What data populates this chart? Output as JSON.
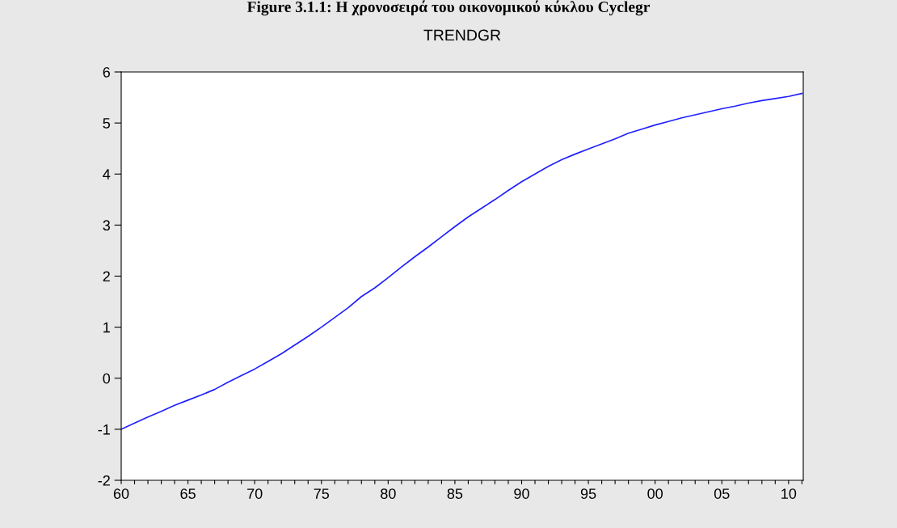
{
  "chart_data": {
    "type": "line",
    "title": "TRENDGR",
    "annotations": [
      "Figure 3.1.1: Η χρονοσειρά του οικονομικού κύκλου Cyclegr"
    ],
    "x": [
      1960,
      1961,
      1962,
      1963,
      1964,
      1965,
      1966,
      1967,
      1968,
      1969,
      1970,
      1971,
      1972,
      1973,
      1974,
      1975,
      1976,
      1977,
      1978,
      1979,
      1980,
      1981,
      1982,
      1983,
      1984,
      1985,
      1986,
      1987,
      1988,
      1989,
      1990,
      1991,
      1992,
      1993,
      1994,
      1995,
      1996,
      1997,
      1998,
      1999,
      2000,
      2001,
      2002,
      2003,
      2004,
      2005,
      2006,
      2007,
      2008,
      2009,
      2010,
      2011
    ],
    "series": [
      {
        "color": "#2020ff",
        "values": [
          -1.0,
          -0.88,
          -0.76,
          -0.65,
          -0.53,
          -0.43,
          -0.33,
          -0.22,
          -0.08,
          0.05,
          0.18,
          0.33,
          0.48,
          0.65,
          0.82,
          1.0,
          1.19,
          1.38,
          1.6,
          1.77,
          1.97,
          2.18,
          2.38,
          2.57,
          2.77,
          2.97,
          3.16,
          3.33,
          3.5,
          3.68,
          3.85,
          4.0,
          4.15,
          4.28,
          4.39,
          4.49,
          4.59,
          4.69,
          4.8,
          4.88,
          4.96,
          5.03,
          5.1,
          5.16,
          5.22,
          5.28,
          5.33,
          5.39,
          5.44,
          5.48,
          5.52,
          5.58
        ]
      }
    ],
    "xlim": [
      1960,
      2011.1
    ],
    "ylim": [
      -2,
      6
    ],
    "yticks": [
      -2,
      -1,
      0,
      1,
      2,
      3,
      4,
      5,
      6
    ],
    "xticks": [
      {
        "value": 1960,
        "label": "60"
      },
      {
        "value": 1961,
        "label": null
      },
      {
        "value": 1962,
        "label": null
      },
      {
        "value": 1963,
        "label": null
      },
      {
        "value": 1964,
        "label": null
      },
      {
        "value": 1965,
        "label": "65"
      },
      {
        "value": 1966,
        "label": null
      },
      {
        "value": 1967,
        "label": null
      },
      {
        "value": 1968,
        "label": null
      },
      {
        "value": 1969,
        "label": null
      },
      {
        "value": 1970,
        "label": "70"
      },
      {
        "value": 1971,
        "label": null
      },
      {
        "value": 1972,
        "label": null
      },
      {
        "value": 1973,
        "label": null
      },
      {
        "value": 1974,
        "label": null
      },
      {
        "value": 1975,
        "label": "75"
      },
      {
        "value": 1976,
        "label": null
      },
      {
        "value": 1977,
        "label": null
      },
      {
        "value": 1978,
        "label": null
      },
      {
        "value": 1979,
        "label": null
      },
      {
        "value": 1980,
        "label": "80"
      },
      {
        "value": 1981,
        "label": null
      },
      {
        "value": 1982,
        "label": null
      },
      {
        "value": 1983,
        "label": null
      },
      {
        "value": 1984,
        "label": null
      },
      {
        "value": 1985,
        "label": "85"
      },
      {
        "value": 1986,
        "label": null
      },
      {
        "value": 1987,
        "label": null
      },
      {
        "value": 1988,
        "label": null
      },
      {
        "value": 1989,
        "label": null
      },
      {
        "value": 1990,
        "label": "90"
      },
      {
        "value": 1991,
        "label": null
      },
      {
        "value": 1992,
        "label": null
      },
      {
        "value": 1993,
        "label": null
      },
      {
        "value": 1994,
        "label": null
      },
      {
        "value": 1995,
        "label": "95"
      },
      {
        "value": 1996,
        "label": null
      },
      {
        "value": 1997,
        "label": null
      },
      {
        "value": 1998,
        "label": null
      },
      {
        "value": 1999,
        "label": null
      },
      {
        "value": 2000,
        "label": "00"
      },
      {
        "value": 2001,
        "label": null
      },
      {
        "value": 2002,
        "label": null
      },
      {
        "value": 2003,
        "label": null
      },
      {
        "value": 2004,
        "label": null
      },
      {
        "value": 2005,
        "label": "05"
      },
      {
        "value": 2006,
        "label": null
      },
      {
        "value": 2007,
        "label": null
      },
      {
        "value": 2008,
        "label": null
      },
      {
        "value": 2009,
        "label": null
      },
      {
        "value": 2010,
        "label": "10"
      },
      {
        "value": 2011,
        "label": null
      }
    ],
    "grid": false,
    "legend": false
  }
}
